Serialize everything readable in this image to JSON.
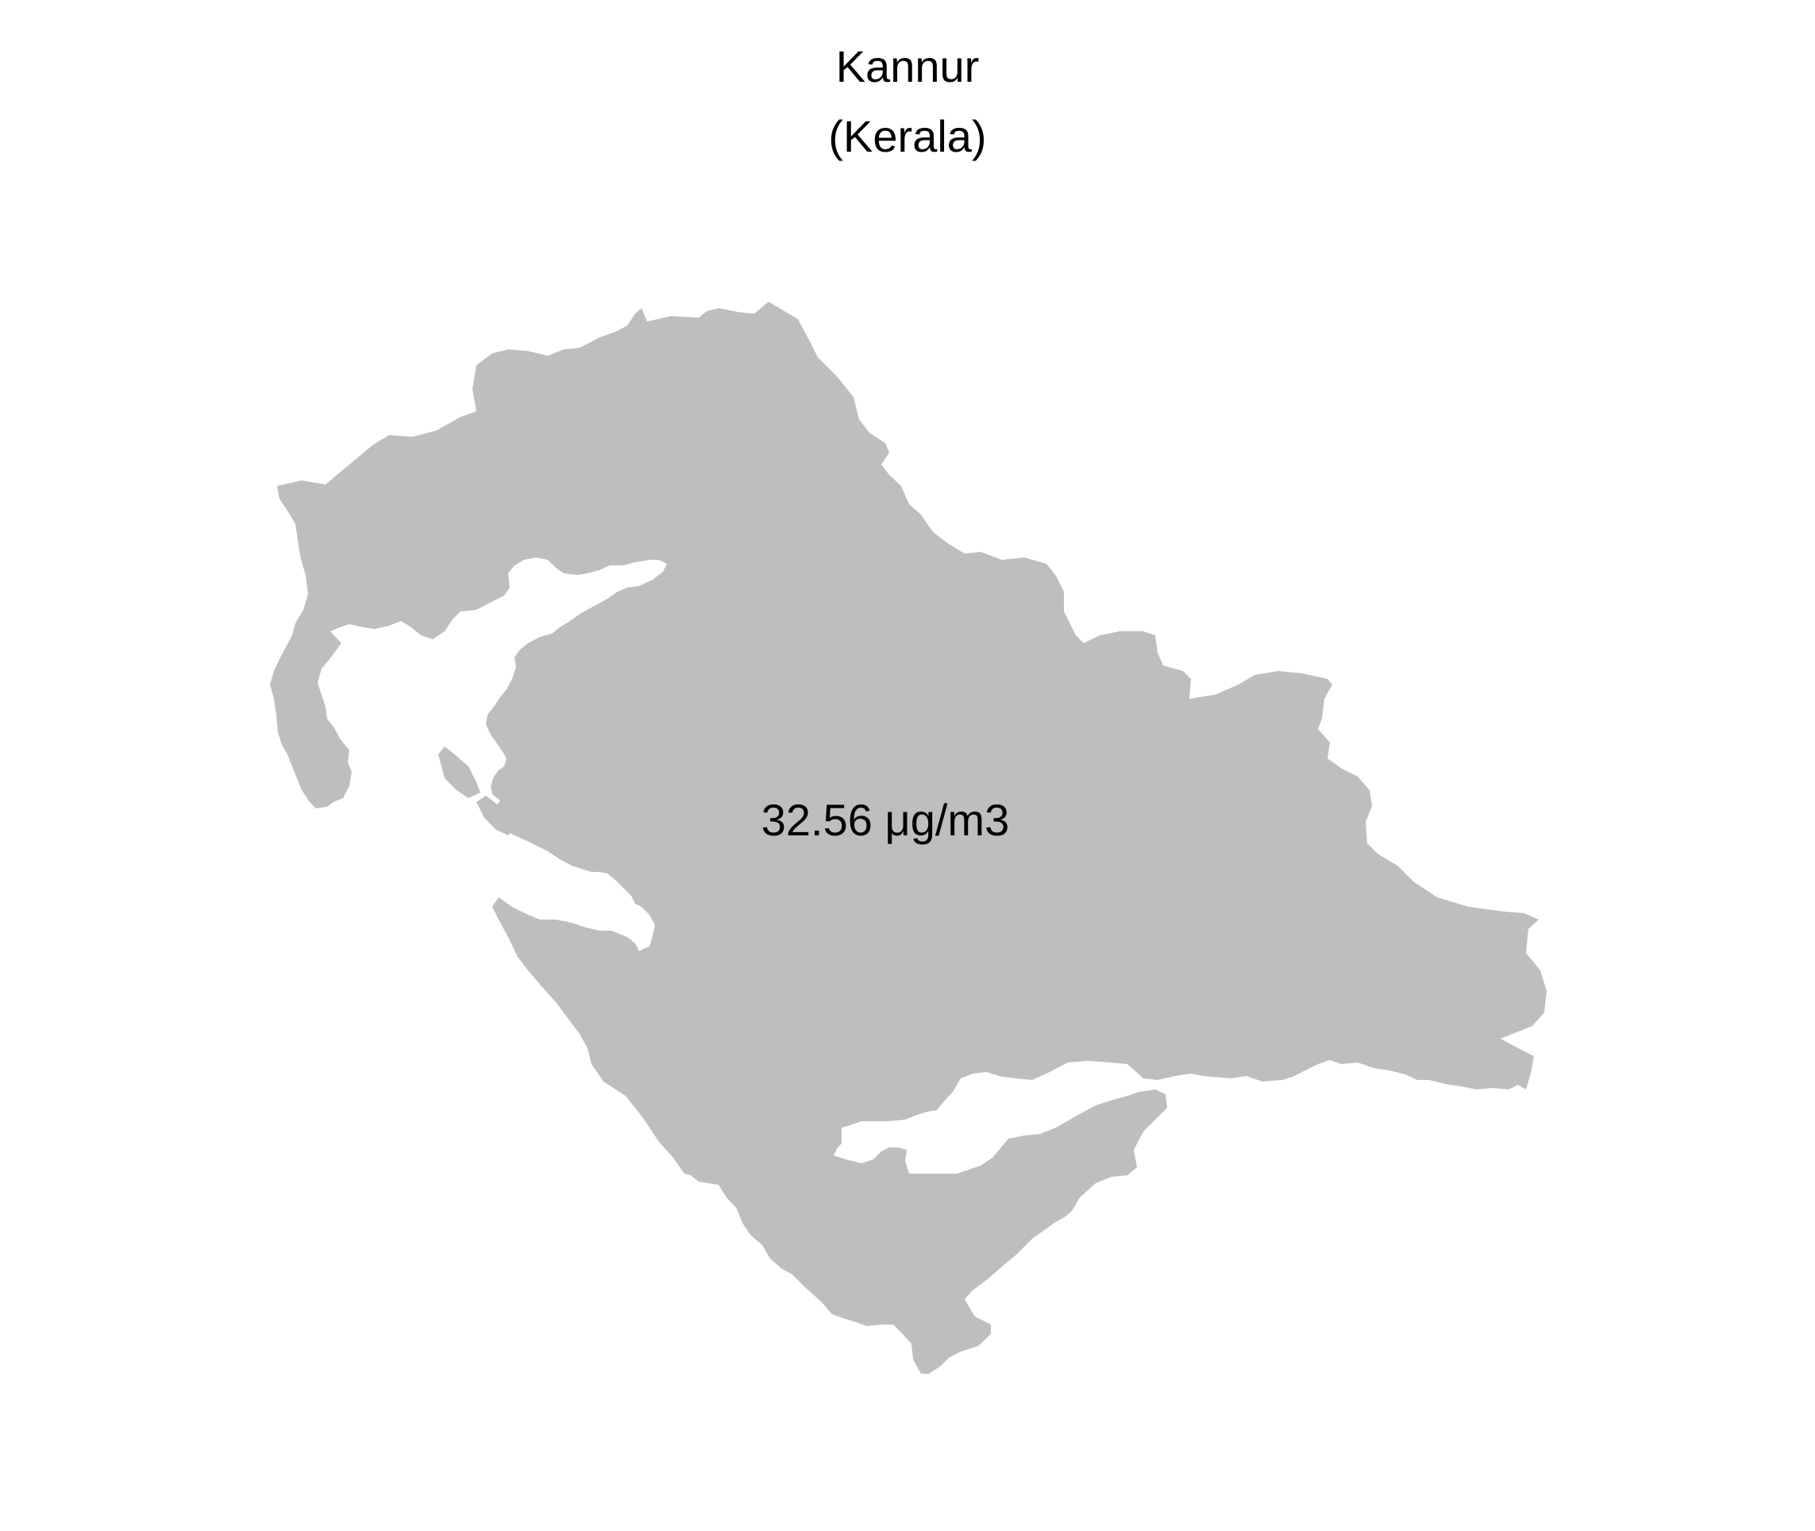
{
  "map": {
    "title": "Kannur",
    "subtitle": "(Kerala)",
    "region_label": "32.56 μg/m3",
    "region_value": 32.56,
    "region_unit": "μg/m3",
    "fill_color": "#bebebe",
    "background_color": "#ffffff"
  }
}
